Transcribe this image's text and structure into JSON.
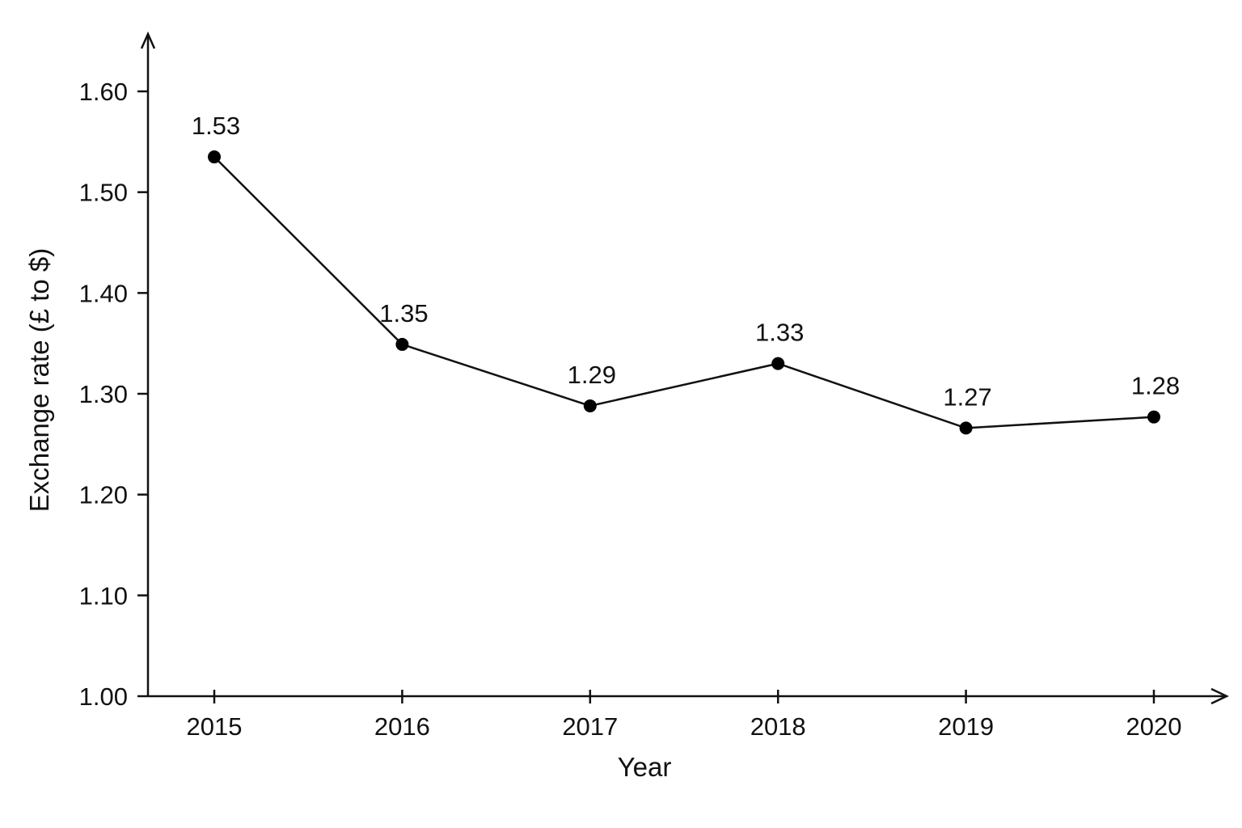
{
  "chart_data": {
    "type": "line",
    "title": "",
    "xlabel": "Year",
    "ylabel": "Exchange rate (£ to $)",
    "categories": [
      "2015",
      "2016",
      "2017",
      "2018",
      "2019",
      "2020"
    ],
    "values": [
      1.535,
      1.349,
      1.288,
      1.33,
      1.266,
      1.277
    ],
    "data_labels": [
      "1.53",
      "1.35",
      "1.29",
      "1.33",
      "1.27",
      "1.28"
    ],
    "ylim": [
      1.0,
      1.6
    ],
    "yticks": [
      1.0,
      1.1,
      1.2,
      1.3,
      1.4,
      1.5,
      1.6
    ],
    "ytick_labels": [
      "1.00",
      "1.10",
      "1.20",
      "1.30",
      "1.40",
      "1.50",
      "1.60"
    ],
    "grid": false,
    "legend": "none",
    "colors": {
      "line": "#111111",
      "marker": "#000000",
      "text": "#111111"
    }
  }
}
